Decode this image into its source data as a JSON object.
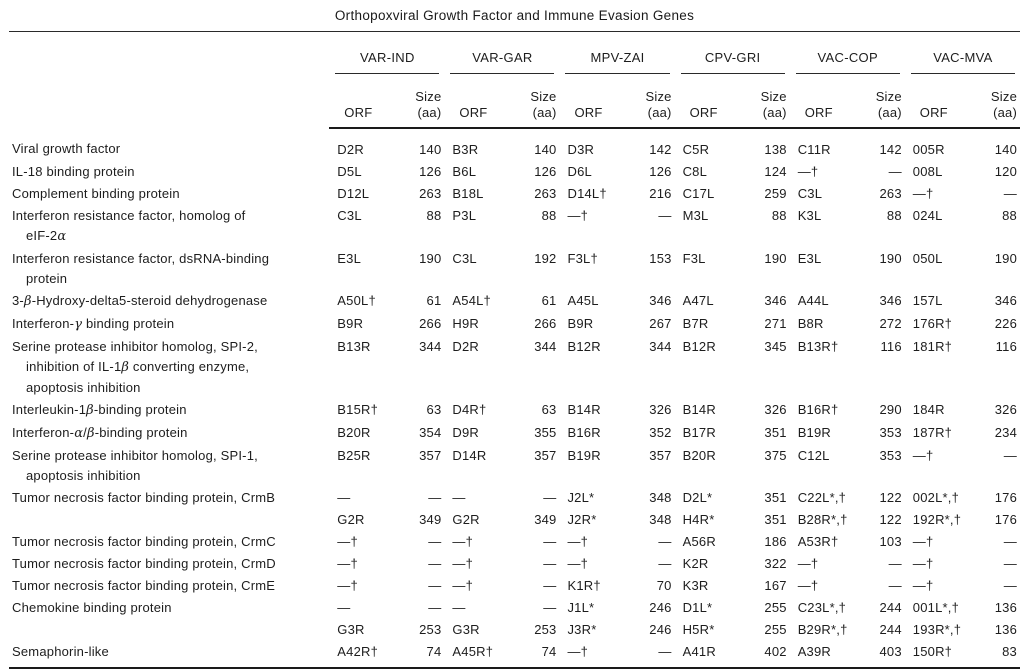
{
  "title": "Orthopoxviral Growth Factor and Immune Evasion Genes",
  "columns": {
    "orf": "ORF",
    "size_line1": "Size",
    "size_line2": "(aa)"
  },
  "groups": [
    "VAR-IND",
    "VAR-GAR",
    "MPV-ZAI",
    "CPV-GRI",
    "VAC-COP",
    "VAC-MVA"
  ],
  "rows": [
    {
      "label": "Viral growth factor",
      "cells": [
        "D2R",
        "140",
        "B3R",
        "140",
        "D3R",
        "142",
        "C5R",
        "138",
        "C11R",
        "142",
        "005R",
        "140"
      ]
    },
    {
      "label": "IL-18 binding protein",
      "cells": [
        "D5L",
        "126",
        "B6L",
        "126",
        "D6L",
        "126",
        "C8L",
        "124",
        "—†",
        "—",
        "008L",
        "120"
      ]
    },
    {
      "label": "Complement binding protein",
      "cells": [
        "D12L",
        "263",
        "B18L",
        "263",
        "D14L†",
        "216",
        "C17L",
        "259",
        "C3L",
        "263",
        "—†",
        "—"
      ]
    },
    {
      "label": "Interferon resistance factor, homolog of\neIF-2α",
      "cells": [
        "C3L",
        "88",
        "P3L",
        "88",
        "—†",
        "—",
        "M3L",
        "88",
        "K3L",
        "88",
        "024L",
        "88"
      ]
    },
    {
      "label": "Interferon resistance factor, dsRNA-binding\nprotein",
      "cells": [
        "E3L",
        "190",
        "C3L",
        "192",
        "F3L†",
        "153",
        "F3L",
        "190",
        "E3L",
        "190",
        "050L",
        "190"
      ]
    },
    {
      "label": "3-β-Hydroxy-delta5-steroid dehydrogenase",
      "cells": [
        "A50L†",
        "61",
        "A54L†",
        "61",
        "A45L",
        "346",
        "A47L",
        "346",
        "A44L",
        "346",
        "157L",
        "346"
      ]
    },
    {
      "label": "Interferon-γ binding protein",
      "cells": [
        "B9R",
        "266",
        "H9R",
        "266",
        "B9R",
        "267",
        "B7R",
        "271",
        "B8R",
        "272",
        "176R†",
        "226"
      ]
    },
    {
      "label": "Serine protease inhibitor homolog, SPI-2,\ninhibition of IL-1β converting enzyme,\napoptosis inhibition",
      "cells": [
        "B13R",
        "344",
        "D2R",
        "344",
        "B12R",
        "344",
        "B12R",
        "345",
        "B13R†",
        "116",
        "181R†",
        "116"
      ]
    },
    {
      "label": "Interleukin-1β-binding protein",
      "cells": [
        "B15R†",
        "63",
        "D4R†",
        "63",
        "B14R",
        "326",
        "B14R",
        "326",
        "B16R†",
        "290",
        "184R",
        "326"
      ]
    },
    {
      "label": "Interferon-α/β-binding protein",
      "cells": [
        "B20R",
        "354",
        "D9R",
        "355",
        "B16R",
        "352",
        "B17R",
        "351",
        "B19R",
        "353",
        "187R†",
        "234"
      ]
    },
    {
      "label": "Serine protease inhibitor homolog, SPI-1,\napoptosis inhibition",
      "cells": [
        "B25R",
        "357",
        "D14R",
        "357",
        "B19R",
        "357",
        "B20R",
        "375",
        "C12L",
        "353",
        "—†",
        "—"
      ]
    },
    {
      "label": "Tumor necrosis factor binding protein, CrmB",
      "cells": [
        "—",
        "—",
        "—",
        "—",
        "J2L*",
        "348",
        "D2L*",
        "351",
        "C22L*,†",
        "122",
        "002L*,†",
        "176"
      ]
    },
    {
      "label": "",
      "cells": [
        "G2R",
        "349",
        "G2R",
        "349",
        "J2R*",
        "348",
        "H4R*",
        "351",
        "B28R*,†",
        "122",
        "192R*,†",
        "176"
      ]
    },
    {
      "label": "Tumor necrosis factor binding protein, CrmC",
      "cells": [
        "—†",
        "—",
        "—†",
        "—",
        "—†",
        "—",
        "A56R",
        "186",
        "A53R†",
        "103",
        "—†",
        "—"
      ]
    },
    {
      "label": "Tumor necrosis factor binding protein, CrmD",
      "cells": [
        "—†",
        "—",
        "—†",
        "—",
        "—†",
        "—",
        "K2R",
        "322",
        "—†",
        "—",
        "—†",
        "—"
      ]
    },
    {
      "label": "Tumor necrosis factor binding protein, CrmE",
      "cells": [
        "—†",
        "—",
        "—†",
        "—",
        "K1R†",
        "70",
        "K3R",
        "167",
        "—†",
        "—",
        "—†",
        "—"
      ]
    },
    {
      "label": "Chemokine binding protein",
      "cells": [
        "—",
        "—",
        "—",
        "—",
        "J1L*",
        "246",
        "D1L*",
        "255",
        "C23L*,†",
        "244",
        "001L*,†",
        "136"
      ]
    },
    {
      "label": "",
      "cells": [
        "G3R",
        "253",
        "G3R",
        "253",
        "J3R*",
        "246",
        "H5R*",
        "255",
        "B29R*,†",
        "244",
        "193R*,†",
        "136"
      ]
    },
    {
      "label": "Semaphorin-like",
      "cells": [
        "A42R†",
        "74",
        "A45R†",
        "74",
        "—†",
        "—",
        "A41R",
        "402",
        "A39R",
        "403",
        "150R†",
        "83"
      ]
    }
  ]
}
